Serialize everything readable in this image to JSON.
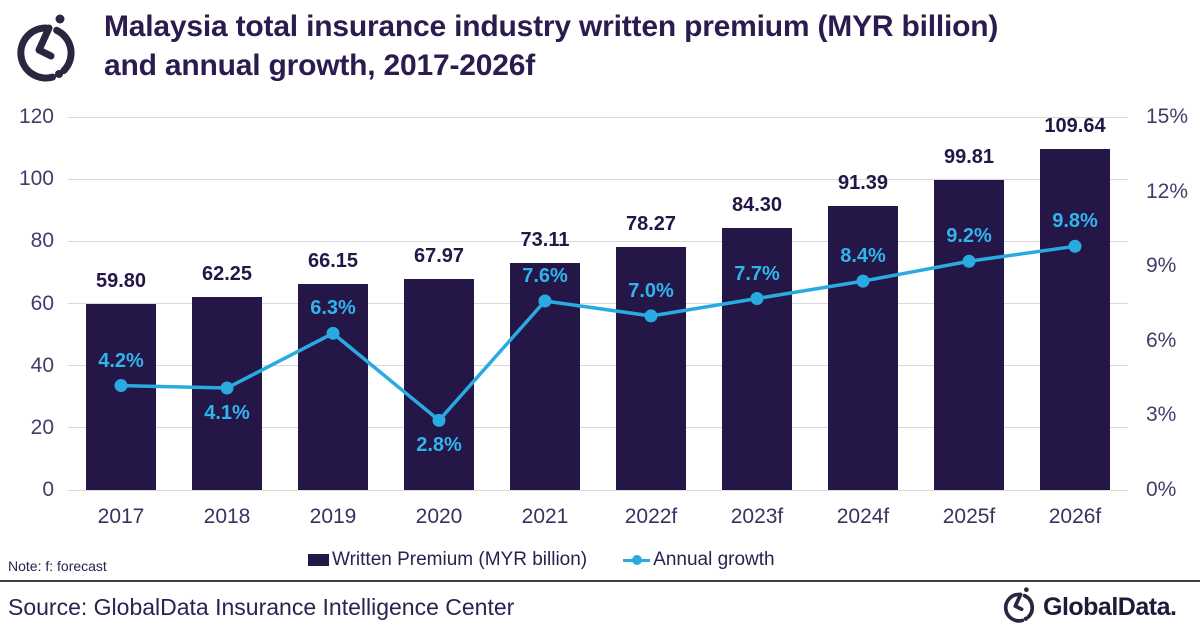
{
  "header": {
    "title_line1": "Malaysia total insurance industry written premium (MYR billion)",
    "title_line2": "and annual growth, 2017-2026f"
  },
  "chart_data": {
    "type": "bar",
    "subtype": "combo-bar-line",
    "title": "Malaysia total insurance industry written premium (MYR billion) and annual growth, 2017-2026f",
    "categories": [
      "2017",
      "2018",
      "2019",
      "2020",
      "2021",
      "2022f",
      "2023f",
      "2024f",
      "2025f",
      "2026f"
    ],
    "series": [
      {
        "name": "Written Premium (MYR billion)",
        "type": "bar",
        "axis": "left",
        "color": "#241647",
        "values": [
          59.8,
          62.25,
          66.15,
          67.97,
          73.11,
          78.27,
          84.3,
          91.39,
          99.81,
          109.64
        ],
        "labels": [
          "59.80",
          "62.25",
          "66.15",
          "67.97",
          "73.11",
          "78.27",
          "84.30",
          "91.39",
          "99.81",
          "109.64"
        ]
      },
      {
        "name": "Annual growth",
        "type": "line",
        "axis": "right",
        "color": "#29abe2",
        "label_color": "#2fb5ec",
        "values": [
          4.2,
          4.1,
          6.3,
          2.8,
          7.6,
          7.0,
          7.7,
          8.4,
          9.2,
          9.8
        ],
        "labels": [
          "4.2%",
          "4.1%",
          "6.3%",
          "2.8%",
          "7.6%",
          "7.0%",
          "7.7%",
          "8.4%",
          "9.2%",
          "9.8%"
        ],
        "label_positions": [
          "above",
          "below",
          "above",
          "below",
          "above",
          "above",
          "above",
          "above",
          "above",
          "above"
        ]
      }
    ],
    "left_axis": {
      "min": 0,
      "max": 120,
      "step": 20,
      "ticks": [
        "0",
        "20",
        "40",
        "60",
        "80",
        "100",
        "120"
      ]
    },
    "right_axis": {
      "min": 0,
      "max": 15,
      "step": 3,
      "ticks": [
        "0%",
        "3%",
        "6%",
        "9%",
        "12%",
        "15%"
      ]
    },
    "grid": true,
    "legend_position": "bottom",
    "bar_label_color": "#241647"
  },
  "legend": {
    "items": [
      {
        "label": "Written Premium (MYR billion)",
        "marker": "bar-swatch",
        "color": "#241647"
      },
      {
        "label": "Annual growth",
        "marker": "line-dot",
        "color": "#29abe2"
      }
    ]
  },
  "note": "Note: f: forecast",
  "footer": {
    "source": "Source: GlobalData Insurance Intelligence Center",
    "brand": "GlobalData."
  },
  "colors": {
    "bar": "#241647",
    "line": "#29abe2",
    "title_text": "#2b1b4f",
    "axis_text": "#443b6b",
    "gridline": "#d9d9d9",
    "divider": "#3f3f3f",
    "background": "#ffffff"
  }
}
